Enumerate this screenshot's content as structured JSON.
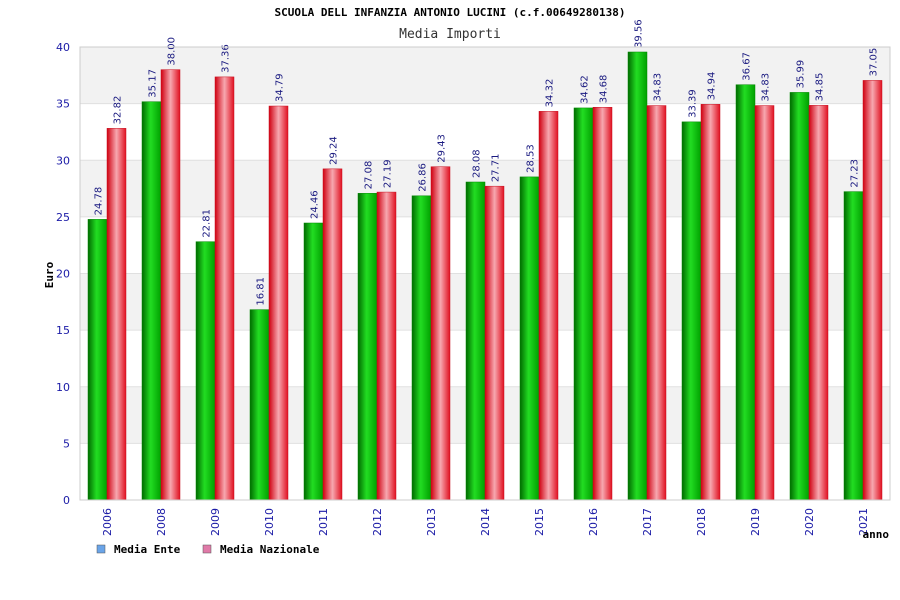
{
  "chart_data": {
    "type": "bar",
    "title": "SCUOLA DELL INFANZIA ANTONIO LUCINI (c.f.00649280138)",
    "subtitle": "Media Importi",
    "xlabel": "anno",
    "ylabel": "Euro",
    "ylim": [
      0,
      40
    ],
    "yticks": [
      0,
      5,
      10,
      15,
      20,
      25,
      30,
      35,
      40
    ],
    "grid": true,
    "legend_position": "bottom-left",
    "categories": [
      "2006",
      "2008",
      "2009",
      "2010",
      "2011",
      "2012",
      "2013",
      "2014",
      "2015",
      "2016",
      "2017",
      "2018",
      "2019",
      "2020",
      "2021"
    ],
    "series": [
      {
        "name": "Media Ente",
        "color": "#00b000",
        "legend_color": "#6aa4e8",
        "values": [
          24.78,
          35.17,
          22.81,
          16.81,
          24.46,
          27.08,
          26.86,
          28.08,
          28.53,
          34.62,
          39.56,
          33.39,
          36.67,
          35.99,
          27.23
        ],
        "labels": [
          "24.78",
          "35.17",
          "22.81",
          "16.81",
          "24.46",
          "27.08",
          "26.86",
          "28.08",
          "28.53",
          "34.62",
          "39.56",
          "33.39",
          "36.67",
          "35.99",
          "27.23"
        ]
      },
      {
        "name": "Media Nazionale",
        "color": "#e8202a",
        "legend_color": "#e07aa8",
        "values": [
          32.82,
          38.0,
          37.36,
          34.79,
          29.24,
          27.19,
          29.43,
          27.71,
          34.32,
          34.68,
          34.83,
          34.94,
          34.83,
          34.85,
          37.05
        ],
        "labels": [
          "32.82",
          "38.00",
          "37.36",
          "34.79",
          "29.24",
          "27.19",
          "29.43",
          "27.71",
          "34.32",
          "34.68",
          "34.83",
          "34.94",
          "34.83",
          "34.85",
          "37.05"
        ]
      }
    ]
  }
}
